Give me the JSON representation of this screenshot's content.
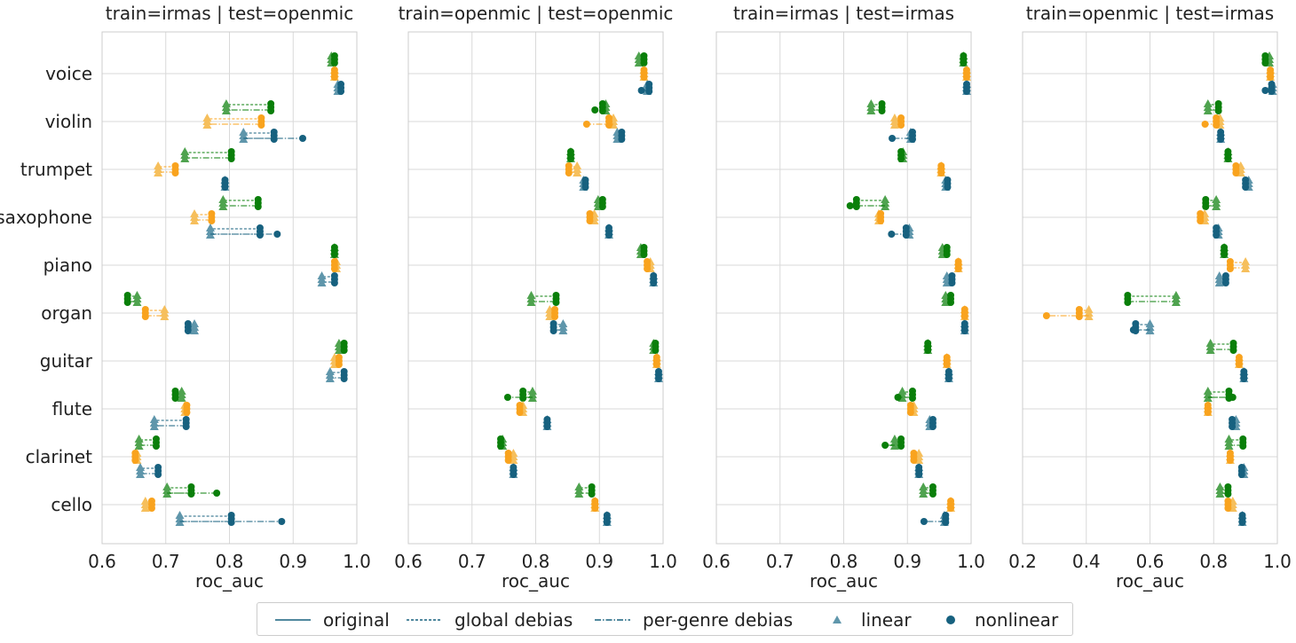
{
  "chart_data": {
    "type": "scatter",
    "categories": [
      "voice",
      "violin",
      "trumpet",
      "saxophone",
      "piano",
      "organ",
      "guitar",
      "flute",
      "clarinet",
      "cello"
    ],
    "xlabel": "roc_auc",
    "grid": true,
    "colors": {
      "green": "#0a7f0a",
      "orange": "#f9a31e",
      "blue": "#17617f"
    },
    "legend": {
      "placement": "bottom-center",
      "entries": [
        {
          "label": "original",
          "kind": "line",
          "dash": "solid"
        },
        {
          "label": "global debias",
          "kind": "line",
          "dash": "dashed"
        },
        {
          "label": "per-genre debias",
          "kind": "line",
          "dash": "dashdot"
        },
        {
          "label": "linear",
          "kind": "marker",
          "marker": "triangle"
        },
        {
          "label": "nonlinear",
          "kind": "marker",
          "marker": "circle"
        }
      ]
    },
    "panels": [
      {
        "title": "train=irmas | test=openmic",
        "xlim": [
          0.6,
          1.0
        ],
        "xticks": [
          "0.6",
          "0.7",
          "0.8",
          "0.9",
          "1.0"
        ],
        "rows": {
          "voice": {
            "green": [
              0.965,
              0.96
            ],
            "orange": [
              0.965,
              0.965
            ],
            "blue": [
              0.975,
              0.97
            ]
          },
          "violin": {
            "green": [
              0.865,
              0.795
            ],
            "orange": [
              0.85,
              0.765
            ],
            "blue": [
              0.87,
              0.822,
              0.915
            ]
          },
          "trumpet": {
            "green": [
              0.803,
              0.73
            ],
            "orange": [
              0.715,
              0.688
            ],
            "blue": [
              0.793,
              0.793
            ]
          },
          "saxophone": {
            "green": [
              0.845,
              0.79
            ],
            "orange": [
              0.772,
              0.745
            ],
            "blue": [
              0.848,
              0.77,
              0.875
            ]
          },
          "piano": {
            "green": [
              0.965,
              0.965
            ],
            "orange": [
              0.965,
              0.968
            ],
            "blue": [
              0.965,
              0.945
            ]
          },
          "organ": {
            "green": [
              0.64,
              0.655
            ],
            "orange": [
              0.668,
              0.698
            ],
            "blue": [
              0.735,
              0.745
            ]
          },
          "guitar": {
            "green": [
              0.98,
              0.972
            ],
            "orange": [
              0.972,
              0.965
            ],
            "blue": [
              0.98,
              0.958
            ]
          },
          "flute": {
            "green": [
              0.715,
              0.725
            ],
            "orange": [
              0.733,
              0.73
            ],
            "blue": [
              0.732,
              0.682
            ]
          },
          "clarinet": {
            "green": [
              0.685,
              0.658
            ],
            "orange": [
              0.652,
              0.655
            ],
            "blue": [
              0.688,
              0.66
            ]
          },
          "cello": {
            "green": [
              0.74,
              0.702,
              0.78
            ],
            "orange": [
              0.678,
              0.668
            ],
            "blue": [
              0.803,
              0.722,
              0.882
            ]
          }
        }
      },
      {
        "title": "train=openmic | test=openmic",
        "xlim": [
          0.6,
          1.0
        ],
        "xticks": [
          "0.6",
          "0.7",
          "0.8",
          "0.9",
          "1.0"
        ],
        "rows": {
          "voice": {
            "green": [
              0.97,
              0.962
            ],
            "orange": [
              0.97,
              0.97
            ],
            "blue": [
              0.978,
              0.975,
              0.966
            ]
          },
          "violin": {
            "green": [
              0.905,
              0.91,
              0.893
            ],
            "orange": [
              0.915,
              0.922,
              0.88
            ],
            "blue": [
              0.935,
              0.928
            ]
          },
          "trumpet": {
            "green": [
              0.855,
              0.855
            ],
            "orange": [
              0.852,
              0.865
            ],
            "blue": [
              0.878,
              0.875
            ]
          },
          "saxophone": {
            "green": [
              0.905,
              0.898
            ],
            "orange": [
              0.885,
              0.892
            ],
            "blue": [
              0.915,
              0.915
            ]
          },
          "piano": {
            "green": [
              0.97,
              0.965
            ],
            "orange": [
              0.975,
              0.98
            ],
            "blue": [
              0.985,
              0.985
            ]
          },
          "organ": {
            "green": [
              0.832,
              0.793
            ],
            "orange": [
              0.83,
              0.822
            ],
            "blue": [
              0.828,
              0.843
            ]
          },
          "guitar": {
            "green": [
              0.988,
              0.985
            ],
            "orange": [
              0.99,
              0.99
            ],
            "blue": [
              0.993,
              0.993
            ]
          },
          "flute": {
            "green": [
              0.78,
              0.795,
              0.756
            ],
            "orange": [
              0.775,
              0.78
            ],
            "blue": [
              0.818,
              0.818
            ]
          },
          "clarinet": {
            "green": [
              0.745,
              0.748
            ],
            "orange": [
              0.757,
              0.765
            ],
            "blue": [
              0.765,
              0.765
            ]
          },
          "cello": {
            "green": [
              0.888,
              0.868
            ],
            "orange": [
              0.893,
              0.893
            ],
            "blue": [
              0.912,
              0.912
            ]
          }
        }
      },
      {
        "title": "train=irmas | test=irmas",
        "xlim": [
          0.6,
          1.0
        ],
        "xticks": [
          "0.6",
          "0.7",
          "0.8",
          "0.9",
          "1.0"
        ],
        "rows": {
          "voice": {
            "green": [
              0.988,
              0.988
            ],
            "orange": [
              0.993,
              0.993
            ],
            "blue": [
              0.993,
              0.993
            ]
          },
          "violin": {
            "green": [
              0.86,
              0.843
            ],
            "orange": [
              0.89,
              0.88
            ],
            "blue": [
              0.908,
              0.905,
              0.876
            ]
          },
          "trumpet": {
            "green": [
              0.89,
              0.893
            ],
            "orange": [
              0.953,
              0.953
            ],
            "blue": [
              0.963,
              0.96
            ]
          },
          "saxophone": {
            "green": [
              0.82,
              0.865,
              0.81
            ],
            "orange": [
              0.858,
              0.855
            ],
            "blue": [
              0.898,
              0.903,
              0.875
            ]
          },
          "piano": {
            "green": [
              0.962,
              0.955
            ],
            "orange": [
              0.98,
              0.98
            ],
            "blue": [
              0.97,
              0.962
            ]
          },
          "organ": {
            "green": [
              0.968,
              0.96
            ],
            "orange": [
              0.99,
              0.99
            ],
            "blue": [
              0.99,
              0.99
            ]
          },
          "guitar": {
            "green": [
              0.932,
              0.932
            ],
            "orange": [
              0.962,
              0.962
            ],
            "blue": [
              0.965,
              0.965
            ]
          },
          "flute": {
            "green": [
              0.908,
              0.892,
              0.885
            ],
            "orange": [
              0.905,
              0.91
            ],
            "blue": [
              0.94,
              0.935
            ]
          },
          "clarinet": {
            "green": [
              0.89,
              0.88,
              0.865
            ],
            "orange": [
              0.91,
              0.918
            ],
            "blue": [
              0.918,
              0.918
            ]
          },
          "cello": {
            "green": [
              0.94,
              0.925
            ],
            "orange": [
              0.968,
              0.968
            ],
            "blue": [
              0.96,
              0.958,
              0.926
            ]
          }
        }
      },
      {
        "title": "train=openmic | test=irmas",
        "xlim": [
          0.2,
          1.0
        ],
        "xticks": [
          "0.2",
          "0.4",
          "0.6",
          "0.8",
          "1.0"
        ],
        "rows": {
          "voice": {
            "green": [
              0.962,
              0.975
            ],
            "orange": [
              0.978,
              0.978
            ],
            "blue": [
              0.982,
              0.985,
              0.962
            ]
          },
          "violin": {
            "green": [
              0.815,
              0.782
            ],
            "orange": [
              0.808,
              0.82,
              0.773
            ],
            "blue": [
              0.822,
              0.822
            ]
          },
          "trumpet": {
            "green": [
              0.845,
              0.845
            ],
            "orange": [
              0.87,
              0.885
            ],
            "blue": [
              0.9,
              0.91
            ]
          },
          "saxophone": {
            "green": [
              0.775,
              0.808
            ],
            "orange": [
              0.758,
              0.772
            ],
            "blue": [
              0.808,
              0.815
            ]
          },
          "piano": {
            "green": [
              0.833,
              0.833
            ],
            "orange": [
              0.852,
              0.9
            ],
            "blue": [
              0.838,
              0.818
            ]
          },
          "organ": {
            "green": [
              0.53,
              0.682
            ],
            "orange": [
              0.378,
              0.408,
              0.275
            ],
            "blue": [
              0.555,
              0.6,
              0.548
            ]
          },
          "guitar": {
            "green": [
              0.862,
              0.79
            ],
            "orange": [
              0.88,
              0.88
            ],
            "blue": [
              0.895,
              0.895
            ]
          },
          "flute": {
            "green": [
              0.848,
              0.782,
              0.86
            ],
            "orange": [
              0.782,
              0.782
            ],
            "blue": [
              0.858,
              0.87
            ]
          },
          "clarinet": {
            "green": [
              0.892,
              0.848
            ],
            "orange": [
              0.852,
              0.852
            ],
            "blue": [
              0.888,
              0.895
            ]
          },
          "cello": {
            "green": [
              0.845,
              0.82
            ],
            "orange": [
              0.845,
              0.86
            ],
            "blue": [
              0.89,
              0.89
            ]
          }
        }
      }
    ]
  }
}
